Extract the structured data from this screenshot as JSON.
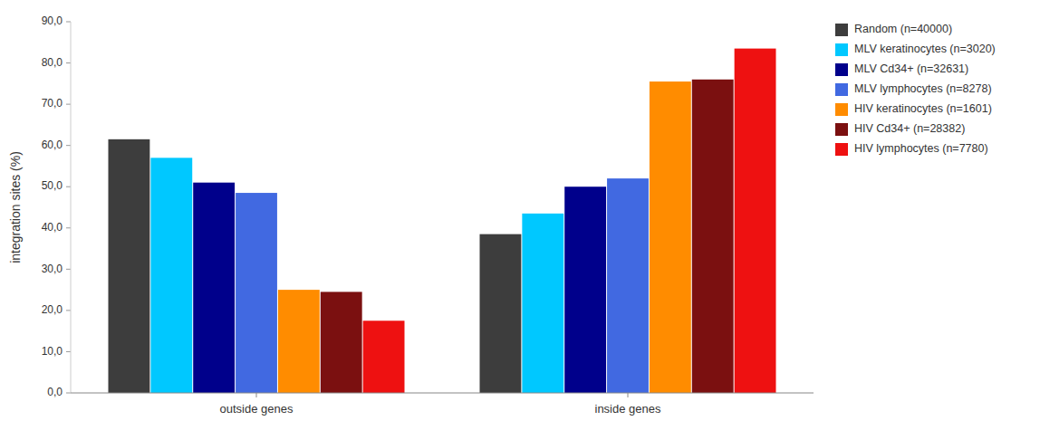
{
  "chart_data": {
    "type": "bar",
    "categories": [
      "outside genes",
      "inside genes"
    ],
    "series": [
      {
        "name": "Random (n=40000)",
        "color": "#3d3d3d",
        "values": [
          61.5,
          38.5
        ]
      },
      {
        "name": "MLV keratinocytes (n=3020)",
        "color": "#00C8FF",
        "values": [
          57.0,
          43.5
        ]
      },
      {
        "name": "MLV Cd34+ (n=32631)",
        "color": "#00008B",
        "values": [
          51.0,
          50.0
        ]
      },
      {
        "name": "MLV lymphocytes (n=8278)",
        "color": "#4169E1",
        "values": [
          48.5,
          52.0
        ]
      },
      {
        "name": "HIV keratinocytes (n=1601)",
        "color": "#FF8C00",
        "values": [
          25.0,
          75.5
        ]
      },
      {
        "name": "HIV Cd34+ (n=28382)",
        "color": "#7B1010",
        "values": [
          24.5,
          76.0
        ]
      },
      {
        "name": "HIV lymphocytes (n=7780)",
        "color": "#EE1111",
        "values": [
          17.5,
          83.5
        ]
      }
    ],
    "ylabel": "integration sites (%)",
    "ylim": [
      0,
      90
    ],
    "yticks": [
      {
        "value": 0,
        "label": "0,0"
      },
      {
        "value": 10,
        "label": "10,0"
      },
      {
        "value": 20,
        "label": "20,0"
      },
      {
        "value": 30,
        "label": "30,0"
      },
      {
        "value": 40,
        "label": "40,0"
      },
      {
        "value": 50,
        "label": "50,0"
      },
      {
        "value": 60,
        "label": "60,0"
      },
      {
        "value": 70,
        "label": "70,0"
      },
      {
        "value": 80,
        "label": "80,0"
      },
      {
        "value": 90,
        "label": "90,0"
      }
    ],
    "grid": false,
    "legend": "right"
  }
}
